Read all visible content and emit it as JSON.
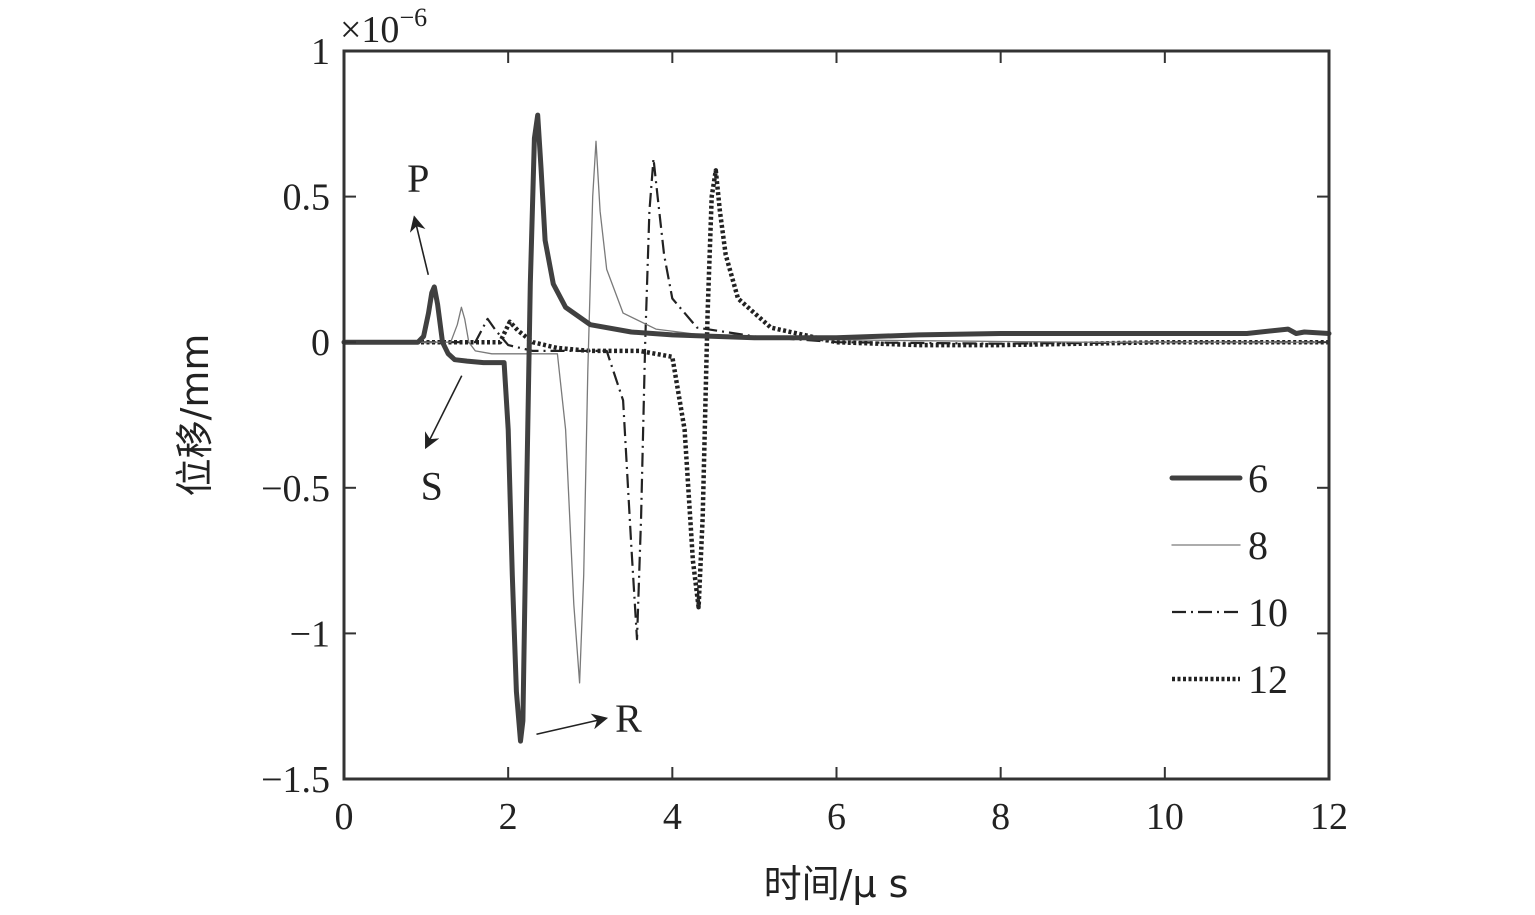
{
  "chart_data": {
    "type": "line",
    "xlabel": "时间/μ s",
    "ylabel": "位移/mm",
    "y_multiplier": {
      "base": "×10",
      "exponent": "−6"
    },
    "xlim": [
      0,
      12
    ],
    "ylim": [
      -1.5,
      1
    ],
    "x_ticks": [
      0,
      2,
      4,
      6,
      8,
      10,
      12
    ],
    "x_tick_labels": [
      "0",
      "2",
      "4",
      "6",
      "8",
      "10",
      "12"
    ],
    "y_ticks": [
      1,
      0.5,
      0,
      -0.5,
      -1,
      -1.5
    ],
    "y_tick_labels": [
      "1",
      "0.5",
      "0",
      "−0.5",
      "−1",
      "−1.5"
    ],
    "grid": false,
    "legend_position": "lower-right",
    "annotations": [
      {
        "text": "P",
        "x": 1.1,
        "y": 0.19
      },
      {
        "text": "S",
        "x": 1.8,
        "y": -0.06
      },
      {
        "text": "R",
        "x": 2.15,
        "y": -1.36
      }
    ],
    "series": [
      {
        "name": "6",
        "color": "#404040",
        "style": "solid-thick",
        "x": [
          0,
          0.9,
          0.97,
          1.03,
          1.07,
          1.1,
          1.14,
          1.2,
          1.27,
          1.35,
          1.5,
          1.7,
          1.85,
          1.95,
          2.0,
          2.05,
          2.1,
          2.15,
          2.18,
          2.22,
          2.27,
          2.32,
          2.36,
          2.4,
          2.45,
          2.55,
          2.7,
          3.0,
          3.5,
          4.0,
          5.0,
          6.0,
          7.0,
          8.0,
          9.0,
          10.0,
          11.0,
          11.5,
          11.6,
          11.7,
          12.0
        ],
        "y": [
          0,
          0,
          0.02,
          0.1,
          0.17,
          0.19,
          0.13,
          0.0,
          -0.04,
          -0.06,
          -0.065,
          -0.07,
          -0.07,
          -0.07,
          -0.3,
          -0.8,
          -1.2,
          -1.37,
          -1.3,
          -0.6,
          0.2,
          0.7,
          0.78,
          0.6,
          0.35,
          0.2,
          0.12,
          0.06,
          0.035,
          0.025,
          0.015,
          0.015,
          0.025,
          0.03,
          0.03,
          0.03,
          0.03,
          0.045,
          0.03,
          0.035,
          0.03
        ]
      },
      {
        "name": "8",
        "color": "#7a7a7a",
        "style": "solid-thin",
        "x": [
          0,
          1.3,
          1.38,
          1.43,
          1.47,
          1.52,
          1.6,
          1.8,
          2.2,
          2.6,
          2.7,
          2.8,
          2.87,
          2.92,
          2.97,
          3.03,
          3.07,
          3.12,
          3.2,
          3.4,
          3.8,
          4.5,
          5.5,
          7.0,
          9.0,
          12.0
        ],
        "y": [
          0,
          0,
          0.06,
          0.12,
          0.08,
          0.0,
          -0.03,
          -0.04,
          -0.04,
          -0.04,
          -0.3,
          -0.9,
          -1.17,
          -0.8,
          -0.1,
          0.5,
          0.69,
          0.45,
          0.25,
          0.1,
          0.045,
          0.02,
          0.01,
          0.005,
          0.0,
          0.0
        ]
      },
      {
        "name": "10",
        "color": "#222222",
        "style": "dash-dot",
        "x": [
          0,
          1.6,
          1.75,
          1.85,
          2.0,
          2.3,
          2.8,
          3.2,
          3.4,
          3.5,
          3.57,
          3.62,
          3.67,
          3.72,
          3.77,
          3.82,
          3.9,
          4.0,
          4.3,
          5.0,
          6.0,
          8.0,
          10.0,
          12.0
        ],
        "y": [
          0,
          0,
          0.08,
          0.04,
          -0.01,
          -0.03,
          -0.03,
          -0.03,
          -0.2,
          -0.7,
          -1.02,
          -0.6,
          0.0,
          0.45,
          0.63,
          0.5,
          0.3,
          0.15,
          0.05,
          0.02,
          0.0,
          -0.005,
          0.0,
          0.0
        ]
      },
      {
        "name": "12",
        "color": "#222222",
        "style": "dotted-thick",
        "x": [
          0,
          1.9,
          2.02,
          2.12,
          2.3,
          2.6,
          3.0,
          3.6,
          4.0,
          4.15,
          4.25,
          4.32,
          4.37,
          4.43,
          4.48,
          4.53,
          4.58,
          4.65,
          4.8,
          5.2,
          6.0,
          7.0,
          8.0,
          9.0,
          10.0,
          11.0,
          12.0
        ],
        "y": [
          0,
          0,
          0.07,
          0.04,
          0.0,
          -0.02,
          -0.03,
          -0.03,
          -0.05,
          -0.3,
          -0.75,
          -0.91,
          -0.6,
          0.1,
          0.5,
          0.59,
          0.45,
          0.3,
          0.15,
          0.05,
          0.0,
          -0.01,
          -0.01,
          -0.005,
          0.0,
          0.0,
          0.0
        ]
      }
    ]
  }
}
